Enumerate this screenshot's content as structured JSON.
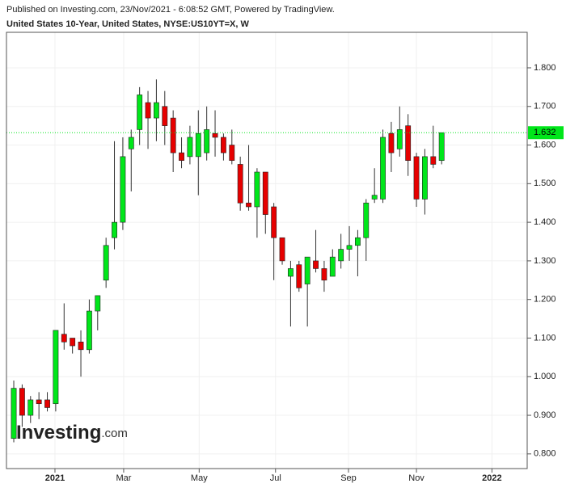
{
  "chart_data": {
    "type": "candlestick",
    "header": "Published on Investing.com, 23/Nov/2021 - 6:08:52 GMT, Powered by TradingView.",
    "title": "United States 10-Year, United States, NYSE:US10YT=X, W",
    "watermark": [
      "Investing",
      ".com"
    ],
    "up_color": "#00e61a",
    "down_color": "#e60000",
    "grid": true,
    "x": [
      0,
      1,
      2,
      3,
      4,
      5,
      6,
      7,
      8,
      9,
      10,
      11,
      12,
      13,
      14,
      15,
      16,
      17,
      18,
      19,
      20,
      21,
      22,
      23,
      24,
      25,
      26,
      27,
      28,
      29,
      30,
      31,
      32,
      33,
      34,
      35,
      36,
      37,
      38,
      39,
      40,
      41,
      42,
      43,
      44,
      45,
      46,
      47,
      48,
      49,
      50,
      51
    ],
    "open": [
      0.84,
      0.97,
      0.9,
      0.94,
      0.94,
      0.93,
      1.11,
      1.1,
      1.09,
      1.07,
      1.17,
      1.25,
      1.36,
      1.4,
      1.59,
      1.64,
      1.71,
      1.67,
      1.7,
      1.67,
      1.58,
      1.57,
      1.57,
      1.58,
      1.63,
      1.62,
      1.6,
      1.55,
      1.45,
      1.44,
      1.53,
      1.44,
      1.36,
      1.26,
      1.29,
      1.24,
      1.3,
      1.28,
      1.26,
      1.3,
      1.33,
      1.34,
      1.36,
      1.46,
      1.46,
      1.63,
      1.59,
      1.65,
      1.57,
      1.46,
      1.57,
      1.56
    ],
    "high": [
      0.99,
      0.98,
      0.95,
      0.96,
      0.96,
      1.12,
      1.19,
      1.1,
      1.12,
      1.2,
      1.21,
      1.36,
      1.61,
      1.62,
      1.64,
      1.75,
      1.74,
      1.77,
      1.74,
      1.69,
      1.62,
      1.65,
      1.69,
      1.7,
      1.69,
      1.63,
      1.64,
      1.57,
      1.6,
      1.54,
      1.53,
      1.45,
      1.36,
      1.3,
      1.3,
      1.31,
      1.38,
      1.3,
      1.33,
      1.37,
      1.39,
      1.38,
      1.46,
      1.54,
      1.64,
      1.66,
      1.7,
      1.68,
      1.58,
      1.59,
      1.65,
      1.632
    ],
    "low": [
      0.83,
      0.87,
      0.88,
      0.89,
      0.91,
      0.91,
      1.07,
      1.06,
      1.0,
      1.06,
      1.12,
      1.23,
      1.33,
      1.38,
      1.48,
      1.6,
      1.59,
      1.61,
      1.6,
      1.53,
      1.54,
      1.55,
      1.47,
      1.56,
      1.57,
      1.56,
      1.55,
      1.43,
      1.43,
      1.36,
      1.37,
      1.25,
      1.29,
      1.13,
      1.22,
      1.13,
      1.27,
      1.22,
      1.26,
      1.28,
      1.3,
      1.26,
      1.3,
      1.45,
      1.45,
      1.53,
      1.57,
      1.52,
      1.44,
      1.42,
      1.54,
      1.55
    ],
    "close": [
      0.97,
      0.9,
      0.94,
      0.93,
      0.92,
      1.12,
      1.09,
      1.08,
      1.07,
      1.17,
      1.21,
      1.34,
      1.4,
      1.57,
      1.62,
      1.73,
      1.67,
      1.71,
      1.65,
      1.58,
      1.56,
      1.62,
      1.63,
      1.64,
      1.62,
      1.58,
      1.56,
      1.45,
      1.44,
      1.53,
      1.42,
      1.36,
      1.3,
      1.28,
      1.23,
      1.31,
      1.28,
      1.25,
      1.31,
      1.33,
      1.34,
      1.36,
      1.45,
      1.47,
      1.62,
      1.58,
      1.64,
      1.56,
      1.46,
      1.57,
      1.55,
      1.632
    ],
    "last_value": 1.632,
    "xlim": [
      -0.87,
      61.2
    ],
    "xticks": [
      {
        "value": 4.91,
        "label": "2021"
      },
      {
        "value": 13.1,
        "label": "Mar"
      },
      {
        "value": 22.1,
        "label": "May"
      },
      {
        "value": 31.2,
        "label": "Jul"
      },
      {
        "value": 39.9,
        "label": "Sep"
      },
      {
        "value": 48.0,
        "label": "Nov"
      },
      {
        "value": 57.0,
        "label": "2022"
      }
    ],
    "ylim": [
      0.762,
      1.892
    ],
    "yticks": [
      {
        "value": 0.8,
        "label": "0.800"
      },
      {
        "value": 0.9,
        "label": "0.900"
      },
      {
        "value": 1.0,
        "label": "1.000"
      },
      {
        "value": 1.1,
        "label": "1.100"
      },
      {
        "value": 1.2,
        "label": "1.200"
      },
      {
        "value": 1.3,
        "label": "1.300"
      },
      {
        "value": 1.4,
        "label": "1.400"
      },
      {
        "value": 1.5,
        "label": "1.500"
      },
      {
        "value": 1.6,
        "label": "1.600"
      },
      {
        "value": 1.7,
        "label": "1.700"
      },
      {
        "value": 1.8,
        "label": "1.800"
      }
    ]
  }
}
